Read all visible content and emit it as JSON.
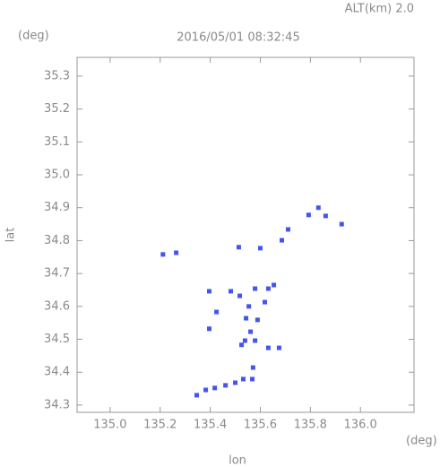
{
  "chart_data": {
    "type": "scatter",
    "title": "2016/05/01 08:32:45",
    "subtitle": "ALT(km) 2.0",
    "y_unit": "(deg)",
    "x_unit": "(deg)",
    "xlabel": "lon",
    "ylabel": "lat",
    "color": "#4455ee",
    "x": [
      135.211,
      135.264,
      135.514,
      135.6,
      135.793,
      135.832,
      135.861,
      135.925,
      135.711,
      135.686,
      135.396,
      135.482,
      135.518,
      135.579,
      135.632,
      135.654,
      135.618,
      135.425,
      135.554,
      135.543,
      135.589,
      135.561,
      135.539,
      135.579,
      135.525,
      135.632,
      135.675,
      135.396,
      135.571,
      135.532,
      135.568,
      135.5,
      135.461,
      135.418,
      135.382,
      135.346
    ],
    "y": [
      34.758,
      34.763,
      34.78,
      34.777,
      34.878,
      34.9,
      34.875,
      34.85,
      34.834,
      34.801,
      34.646,
      34.646,
      34.632,
      34.654,
      34.654,
      34.665,
      34.613,
      34.583,
      34.6,
      34.564,
      34.559,
      34.523,
      34.496,
      34.496,
      34.483,
      34.474,
      34.474,
      34.532,
      34.414,
      34.379,
      34.379,
      34.368,
      34.36,
      34.352,
      34.346,
      34.33
    ],
    "xlim": [
      134.868,
      136.214
    ],
    "ylim": [
      34.278,
      35.357
    ],
    "xticks": [
      {
        "value": 135,
        "label": "135.0"
      },
      135.2,
      135.4,
      135.6,
      135.8,
      {
        "value": 136,
        "label": "136.0"
      }
    ],
    "yticks": [
      34.3,
      34.4,
      34.5,
      34.6,
      34.7,
      34.8,
      34.9,
      {
        "value": 35,
        "label": "35.0"
      },
      35.1,
      35.2,
      35.3
    ]
  }
}
